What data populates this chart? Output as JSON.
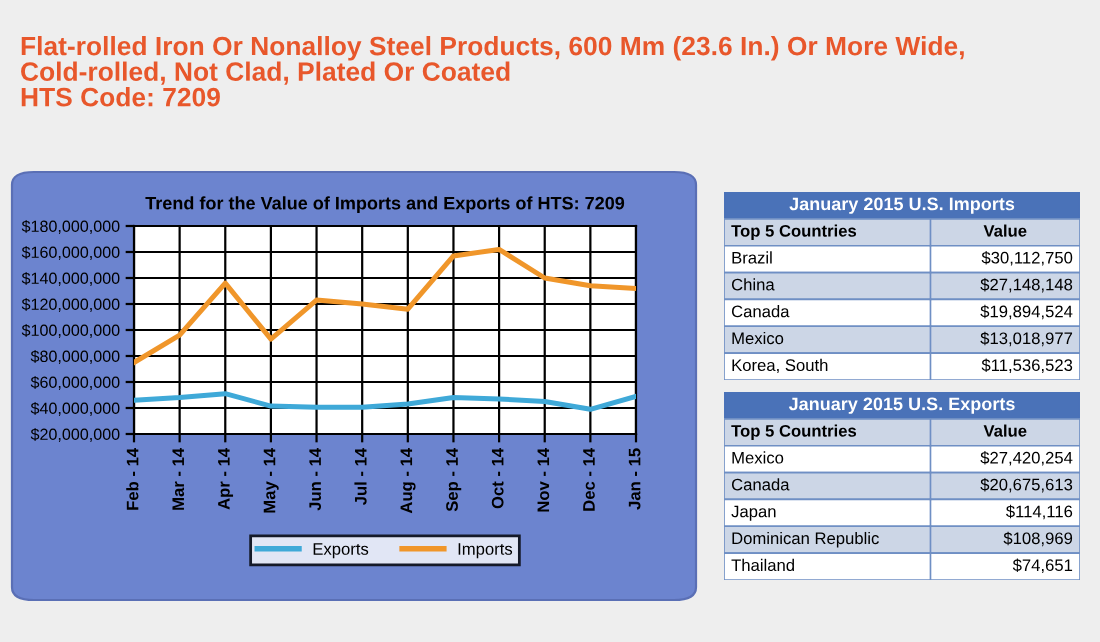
{
  "chart_data": [
    {
      "type": "line",
      "title": "Trend for the Value of Imports and Exports of HTS: 7209",
      "annotations": [
        "Flat-rolled Iron Or Nonalloy Steel Products, 600 Mm (23.6 In.) Or More Wide,\nCold-rolled, Not Clad, Plated Or Coated\nHTS Code: 7209"
      ],
      "categories": [
        "Feb - 14",
        "Mar - 14",
        "Apr - 14",
        "May - 14",
        "Jun - 14",
        "Jul - 14",
        "Aug - 14",
        "Sep - 14",
        "Oct - 14",
        "Nov - 14",
        "Dec - 14",
        "Jan - 15"
      ],
      "series": [
        {
          "name": "Exports",
          "color": "#3fa9d8",
          "values": [
            46000000,
            48000000,
            51000000,
            41500000,
            40500000,
            40500000,
            43000000,
            48000000,
            47000000,
            45000000,
            39000000,
            49000000
          ]
        },
        {
          "name": "Imports",
          "color": "#f0962a",
          "values": [
            75000000,
            96000000,
            136000000,
            93000000,
            123000000,
            120000000,
            116000000,
            157000000,
            162000000,
            140000000,
            134000000,
            132000000
          ]
        }
      ],
      "ylim": [
        20000000,
        180000000
      ],
      "yticks": [
        {
          "value": 20000000,
          "label": "$20,000,000"
        },
        {
          "value": 40000000,
          "label": "$40,000,000"
        },
        {
          "value": 60000000,
          "label": "$60,000,000"
        },
        {
          "value": 80000000,
          "label": "$80,000,000"
        },
        {
          "value": 100000000,
          "label": "$100,000,000"
        },
        {
          "value": 120000000,
          "label": "$120,000,000"
        },
        {
          "value": 140000000,
          "label": "$140,000,000"
        },
        {
          "value": 160000000,
          "label": "$160,000,000"
        },
        {
          "value": 180000000,
          "label": "$180,000,000"
        }
      ],
      "grid": true,
      "legend": "bottom",
      "marker": "none",
      "line_style": "solid"
    },
    {
      "type": "other",
      "title": "January 2015 U.S. Imports",
      "annotations": [
        "Top 5 Countries",
        "Value",
        "Brazil",
        "$30,112,750",
        "China",
        "$27,148,148",
        "Canada",
        "$19,894,524",
        "Mexico",
        "$13,018,977",
        "Korea, South",
        "$11,536,523"
      ]
    },
    {
      "type": "other",
      "title": "January 2015 U.S. Exports",
      "annotations": [
        "Top 5 Countries",
        "Value",
        "Mexico",
        "$27,420,254",
        "Canada",
        "$20,675,613",
        "Japan",
        "$114,116",
        "Dominican Republic",
        "$108,969",
        "Thailand",
        "$74,651"
      ]
    }
  ]
}
